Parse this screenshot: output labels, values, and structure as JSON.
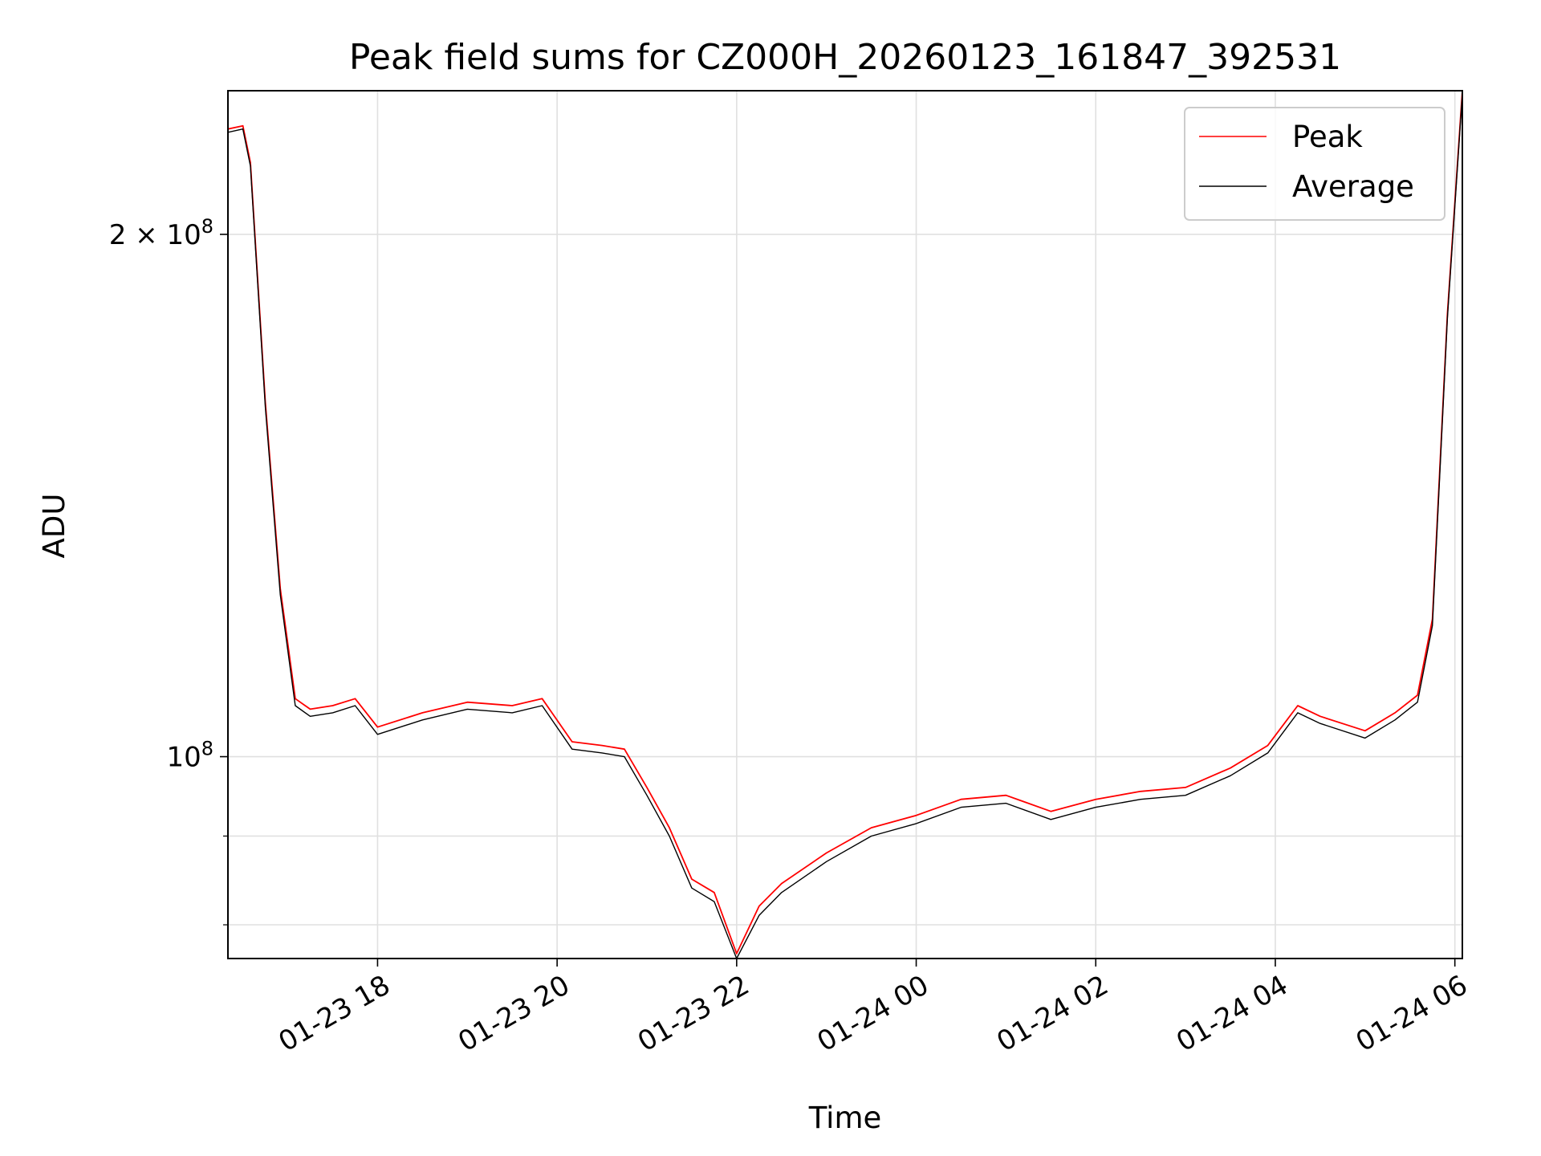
{
  "chart_data": {
    "type": "line",
    "title": "Peak field sums for CZ000H_20260123_161847_392531",
    "xlabel": "Time",
    "ylabel": "ADU",
    "y_scale": "log",
    "grid": true,
    "legend_position": "top-right",
    "x_range": [
      "2026-01-23 16:20",
      "2026-01-24 06:05"
    ],
    "y_range": [
      76500000,
      242000000
    ],
    "x_tick_labels": [
      "01-23 18",
      "01-23 20",
      "01-23 22",
      "01-24 00",
      "01-24 02",
      "01-24 04",
      "01-24 06"
    ],
    "x_ticks": [
      "2026-01-23 18:00",
      "2026-01-23 20:00",
      "2026-01-23 22:00",
      "2026-01-24 00:00",
      "2026-01-24 02:00",
      "2026-01-24 04:00",
      "2026-01-24 06:00"
    ],
    "y_major_ticks": [
      {
        "value": 100000000,
        "label_base": "10",
        "label_exp": "8"
      },
      {
        "value": 200000000,
        "label_base": "2 × 10",
        "label_exp": "8"
      }
    ],
    "y_minor_ticks": [
      80000000,
      90000000
    ],
    "series": [
      {
        "name": "Peak",
        "color": "#ff0000",
        "x": [
          "2026-01-23 16:20",
          "2026-01-23 16:30",
          "2026-01-23 16:35",
          "2026-01-23 16:45",
          "2026-01-23 16:55",
          "2026-01-23 17:05",
          "2026-01-23 17:15",
          "2026-01-23 17:30",
          "2026-01-23 17:45",
          "2026-01-23 18:00",
          "2026-01-23 18:30",
          "2026-01-23 19:00",
          "2026-01-23 19:30",
          "2026-01-23 19:50",
          "2026-01-23 20:10",
          "2026-01-23 20:30",
          "2026-01-23 20:45",
          "2026-01-23 21:00",
          "2026-01-23 21:15",
          "2026-01-23 21:30",
          "2026-01-23 21:45",
          "2026-01-23 22:00",
          "2026-01-23 22:15",
          "2026-01-23 22:30",
          "2026-01-23 23:00",
          "2026-01-23 23:30",
          "2026-01-24 00:00",
          "2026-01-24 00:30",
          "2026-01-24 01:00",
          "2026-01-24 01:30",
          "2026-01-24 02:00",
          "2026-01-24 02:30",
          "2026-01-24 03:00",
          "2026-01-24 03:30",
          "2026-01-24 03:55",
          "2026-01-24 04:15",
          "2026-01-24 04:30",
          "2026-01-24 05:00",
          "2026-01-24 05:20",
          "2026-01-24 05:35",
          "2026-01-24 05:45",
          "2026-01-24 05:55",
          "2026-01-24 06:05"
        ],
        "y": [
          230000000,
          231000000,
          220000000,
          160000000,
          125000000,
          108000000,
          106500000,
          107000000,
          108000000,
          104000000,
          106000000,
          107500000,
          107000000,
          108000000,
          102000000,
          101500000,
          101000000,
          96000000,
          91000000,
          85000000,
          83500000,
          77000000,
          82000000,
          84500000,
          88000000,
          91000000,
          92500000,
          94500000,
          95000000,
          93000000,
          94500000,
          95500000,
          96000000,
          98500000,
          101500000,
          107000000,
          105500000,
          103500000,
          106000000,
          108500000,
          120000000,
          180000000,
          242000000
        ]
      },
      {
        "name": "Average",
        "color": "#000000",
        "x": [
          "2026-01-23 16:20",
          "2026-01-23 16:30",
          "2026-01-23 16:35",
          "2026-01-23 16:45",
          "2026-01-23 16:55",
          "2026-01-23 17:05",
          "2026-01-23 17:15",
          "2026-01-23 17:30",
          "2026-01-23 17:45",
          "2026-01-23 18:00",
          "2026-01-23 18:30",
          "2026-01-23 19:00",
          "2026-01-23 19:30",
          "2026-01-23 19:50",
          "2026-01-23 20:10",
          "2026-01-23 20:30",
          "2026-01-23 20:45",
          "2026-01-23 21:00",
          "2026-01-23 21:15",
          "2026-01-23 21:30",
          "2026-01-23 21:45",
          "2026-01-23 22:00",
          "2026-01-23 22:15",
          "2026-01-23 22:30",
          "2026-01-23 23:00",
          "2026-01-23 23:30",
          "2026-01-24 00:00",
          "2026-01-24 00:30",
          "2026-01-24 01:00",
          "2026-01-24 01:30",
          "2026-01-24 02:00",
          "2026-01-24 02:30",
          "2026-01-24 03:00",
          "2026-01-24 03:30",
          "2026-01-24 03:55",
          "2026-01-24 04:15",
          "2026-01-24 04:30",
          "2026-01-24 05:00",
          "2026-01-24 05:20",
          "2026-01-24 05:35",
          "2026-01-24 05:45",
          "2026-01-24 05:55",
          "2026-01-24 06:05"
        ],
        "y": [
          229000000,
          230000000,
          219000000,
          159000000,
          124000000,
          107000000,
          105500000,
          106000000,
          107000000,
          103000000,
          105000000,
          106500000,
          106000000,
          107000000,
          101000000,
          100500000,
          100000000,
          95000000,
          90000000,
          84000000,
          82500000,
          76500000,
          81000000,
          83500000,
          87000000,
          90000000,
          91500000,
          93500000,
          94000000,
          92000000,
          93500000,
          94500000,
          95000000,
          97500000,
          100500000,
          106000000,
          104500000,
          102500000,
          105000000,
          107500000,
          119000000,
          179000000,
          241000000
        ]
      }
    ]
  }
}
